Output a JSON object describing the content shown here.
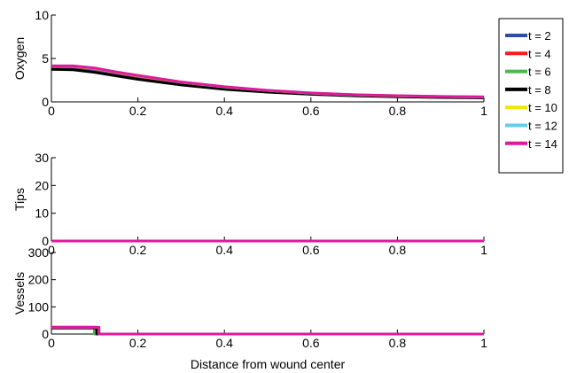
{
  "chart_data": {
    "type": "line",
    "xlabel": "Distance from wound center",
    "x_ticks": [
      "0",
      "0.2",
      "0.4",
      "0.6",
      "0.8",
      "1"
    ],
    "legend": {
      "placement": "top-right",
      "entries": [
        {
          "label": "t = 2",
          "color": "#2b4fa3"
        },
        {
          "label": "t = 4",
          "color": "#ff1a1a"
        },
        {
          "label": "t = 6",
          "color": "#4ab84a"
        },
        {
          "label": "t = 8",
          "color": "#000000"
        },
        {
          "label": "t = 10",
          "color": "#f2e600"
        },
        {
          "label": "t = 12",
          "color": "#66ccee"
        },
        {
          "label": "t = 14",
          "color": "#e0199b"
        }
      ]
    },
    "panels": [
      {
        "name": "oxygen",
        "ylabel": "Oxygen",
        "xlim": [
          0,
          1
        ],
        "ylim": [
          0,
          10
        ],
        "y_ticks": [
          "0",
          "5",
          "10"
        ],
        "series": [
          {
            "label": "t = 2",
            "points": [
              [
                0,
                3.8
              ],
              [
                0.05,
                3.8
              ],
              [
                0.1,
                3.5
              ],
              [
                0.15,
                3.1
              ],
              [
                0.2,
                2.7
              ],
              [
                0.3,
                2.0
              ],
              [
                0.4,
                1.5
              ],
              [
                0.5,
                1.15
              ],
              [
                0.6,
                0.9
              ],
              [
                0.7,
                0.72
              ],
              [
                0.8,
                0.6
              ],
              [
                0.9,
                0.52
              ],
              [
                1.0,
                0.48
              ]
            ]
          },
          {
            "label": "t = 4",
            "points": [
              [
                0,
                4.05
              ],
              [
                0.05,
                4.05
              ],
              [
                0.1,
                3.8
              ],
              [
                0.15,
                3.35
              ],
              [
                0.2,
                2.95
              ],
              [
                0.3,
                2.2
              ],
              [
                0.4,
                1.65
              ],
              [
                0.5,
                1.25
              ],
              [
                0.6,
                0.98
              ],
              [
                0.7,
                0.78
              ],
              [
                0.8,
                0.66
              ],
              [
                0.9,
                0.58
              ],
              [
                1.0,
                0.53
              ]
            ]
          },
          {
            "label": "t = 6",
            "points": [
              [
                0,
                4.1
              ],
              [
                0.05,
                4.1
              ],
              [
                0.1,
                3.85
              ],
              [
                0.15,
                3.4
              ],
              [
                0.2,
                3.0
              ],
              [
                0.3,
                2.25
              ],
              [
                0.4,
                1.7
              ],
              [
                0.5,
                1.3
              ],
              [
                0.6,
                1.0
              ],
              [
                0.7,
                0.8
              ],
              [
                0.8,
                0.68
              ],
              [
                0.9,
                0.6
              ],
              [
                1.0,
                0.55
              ]
            ]
          },
          {
            "label": "t = 8",
            "points": [
              [
                0,
                3.75
              ],
              [
                0.05,
                3.7
              ],
              [
                0.1,
                3.4
              ],
              [
                0.15,
                3.0
              ],
              [
                0.2,
                2.6
              ],
              [
                0.3,
                1.95
              ],
              [
                0.4,
                1.45
              ],
              [
                0.5,
                1.12
              ],
              [
                0.6,
                0.88
              ],
              [
                0.7,
                0.7
              ],
              [
                0.8,
                0.59
              ],
              [
                0.9,
                0.51
              ],
              [
                1.0,
                0.47
              ]
            ]
          },
          {
            "label": "t = 10",
            "points": [
              [
                0,
                4.12
              ],
              [
                0.05,
                4.12
              ],
              [
                0.1,
                3.87
              ],
              [
                0.15,
                3.42
              ],
              [
                0.2,
                3.02
              ],
              [
                0.3,
                2.27
              ],
              [
                0.4,
                1.72
              ],
              [
                0.5,
                1.31
              ],
              [
                0.6,
                1.01
              ],
              [
                0.7,
                0.81
              ],
              [
                0.8,
                0.69
              ],
              [
                0.9,
                0.61
              ],
              [
                1.0,
                0.56
              ]
            ]
          },
          {
            "label": "t = 12",
            "points": [
              [
                0,
                4.14
              ],
              [
                0.05,
                4.14
              ],
              [
                0.1,
                3.89
              ],
              [
                0.15,
                3.44
              ],
              [
                0.2,
                3.04
              ],
              [
                0.3,
                2.28
              ],
              [
                0.4,
                1.73
              ],
              [
                0.5,
                1.32
              ],
              [
                0.6,
                1.02
              ],
              [
                0.7,
                0.82
              ],
              [
                0.8,
                0.7
              ],
              [
                0.9,
                0.62
              ],
              [
                1.0,
                0.57
              ]
            ]
          },
          {
            "label": "t = 14",
            "points": [
              [
                0,
                4.15
              ],
              [
                0.05,
                4.15
              ],
              [
                0.1,
                3.9
              ],
              [
                0.15,
                3.45
              ],
              [
                0.2,
                3.05
              ],
              [
                0.3,
                2.3
              ],
              [
                0.4,
                1.75
              ],
              [
                0.5,
                1.33
              ],
              [
                0.6,
                1.03
              ],
              [
                0.7,
                0.83
              ],
              [
                0.8,
                0.71
              ],
              [
                0.9,
                0.63
              ],
              [
                1.0,
                0.58
              ]
            ]
          }
        ]
      },
      {
        "name": "tips",
        "ylabel": "Tips",
        "xlim": [
          0,
          1
        ],
        "ylim": [
          0,
          30
        ],
        "y_ticks": [
          "0",
          "10",
          "20",
          "30"
        ],
        "series": [
          {
            "label": "t = 2",
            "points": [
              [
                0,
                0
              ],
              [
                1,
                0
              ]
            ]
          },
          {
            "label": "t = 4",
            "points": [
              [
                0,
                0
              ],
              [
                1,
                0
              ]
            ]
          },
          {
            "label": "t = 6",
            "points": [
              [
                0,
                0
              ],
              [
                1,
                0
              ]
            ]
          },
          {
            "label": "t = 8",
            "points": [
              [
                0,
                0
              ],
              [
                1,
                0
              ]
            ]
          },
          {
            "label": "t = 10",
            "points": [
              [
                0,
                0
              ],
              [
                1,
                0
              ]
            ]
          },
          {
            "label": "t = 12",
            "points": [
              [
                0,
                0
              ],
              [
                1,
                0
              ]
            ]
          },
          {
            "label": "t = 14",
            "points": [
              [
                0,
                0
              ],
              [
                1,
                0
              ]
            ]
          }
        ]
      },
      {
        "name": "vessels",
        "ylabel": "Vessels",
        "xlim": [
          0,
          1
        ],
        "ylim": [
          0,
          300
        ],
        "y_ticks": [
          "0",
          "100",
          "200",
          "300"
        ],
        "series": [
          {
            "label": "t = 2",
            "points": [
              [
                0,
                25
              ],
              [
                0.1,
                25
              ],
              [
                0.1,
                0
              ],
              [
                1,
                0
              ]
            ]
          },
          {
            "label": "t = 4",
            "points": [
              [
                0,
                25
              ],
              [
                0.1,
                25
              ],
              [
                0.1,
                0
              ],
              [
                1,
                0
              ]
            ]
          },
          {
            "label": "t = 6",
            "points": [
              [
                0,
                25
              ],
              [
                0.1,
                25
              ],
              [
                0.1,
                0
              ],
              [
                1,
                0
              ]
            ]
          },
          {
            "label": "t = 8",
            "points": [
              [
                0,
                22
              ],
              [
                0.105,
                22
              ],
              [
                0.105,
                0
              ],
              [
                1,
                0
              ]
            ]
          },
          {
            "label": "t = 10",
            "points": [
              [
                0,
                25
              ],
              [
                0.11,
                25
              ],
              [
                0.11,
                0
              ],
              [
                1,
                0
              ]
            ]
          },
          {
            "label": "t = 12",
            "points": [
              [
                0,
                25
              ],
              [
                0.11,
                25
              ],
              [
                0.11,
                0
              ],
              [
                1,
                0
              ]
            ]
          },
          {
            "label": "t = 14",
            "points": [
              [
                0,
                25
              ],
              [
                0.11,
                25
              ],
              [
                0.11,
                0
              ],
              [
                1,
                0
              ]
            ]
          }
        ]
      }
    ]
  }
}
